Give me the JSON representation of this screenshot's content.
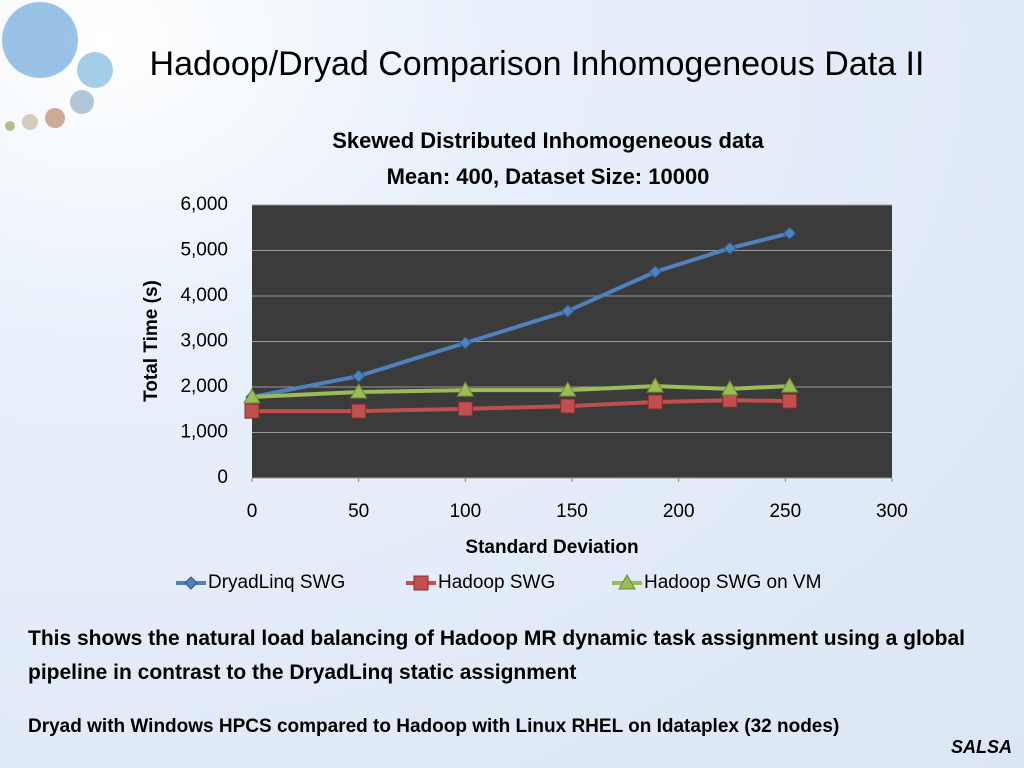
{
  "slide": {
    "title": "Hadoop/Dryad Comparison Inhomogeneous Data II",
    "note": "This shows the natural load balancing of Hadoop MR dynamic task assignment using a global pipeline in contrast to the  DryadLinq static assignment",
    "footer": "Dryad with Windows HPCS compared to Hadoop with Linux RHEL on Idataplex (32 nodes)",
    "logo": "SALSA"
  },
  "chart_data": {
    "type": "line",
    "title": "Skewed Distributed Inhomogeneous data",
    "subtitle": "Mean: 400, Dataset Size: 10000",
    "x_label": "Standard Deviation",
    "y_label": "Total Time (s)",
    "x": [
      0,
      50,
      100,
      148,
      189,
      224,
      252
    ],
    "series": [
      {
        "name": "DryadLinq SWG",
        "color": "#4f81bd",
        "marker": "diamond",
        "values": [
          1780,
          2240,
          2970,
          3670,
          4530,
          5050,
          5380
        ]
      },
      {
        "name": "Hadoop SWG",
        "color": "#c0504d",
        "marker": "square",
        "values": [
          1470,
          1470,
          1520,
          1580,
          1670,
          1710,
          1690
        ]
      },
      {
        "name": "Hadoop SWG on VM",
        "color": "#9bbb59",
        "marker": "triangle",
        "values": [
          1780,
          1890,
          1930,
          1930,
          2020,
          1960,
          2020
        ]
      }
    ],
    "xlim": [
      0,
      300
    ],
    "xticks": [
      0,
      50,
      100,
      150,
      200,
      250,
      300
    ],
    "ylim": [
      0,
      6000
    ],
    "yticks": [
      0,
      {
        "value": 1000,
        "label": "1,000"
      },
      {
        "value": 2000,
        "label": "2,000"
      },
      {
        "value": 3000,
        "label": "3,000"
      },
      {
        "value": 4000,
        "label": "4,000"
      },
      {
        "value": 5000,
        "label": "5,000"
      },
      {
        "value": 6000,
        "label": "6,000"
      }
    ],
    "grid": true,
    "legend": "bottom",
    "plot_background": "#3b3b3b"
  }
}
